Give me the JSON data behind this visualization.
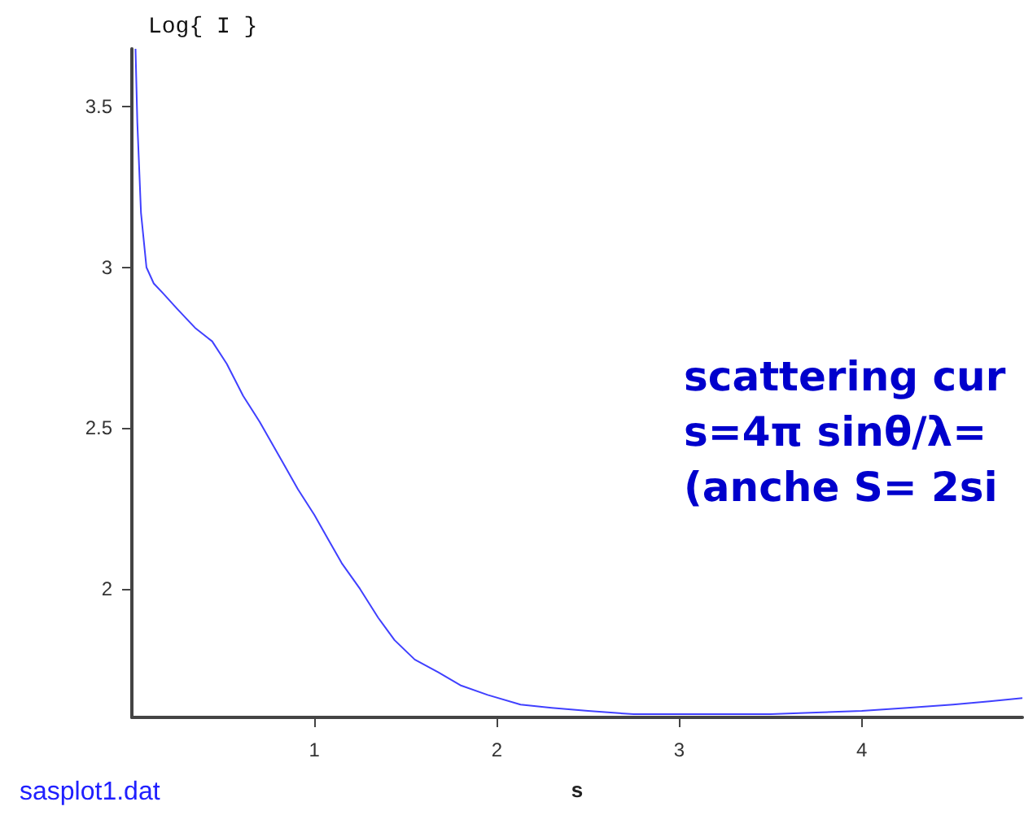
{
  "chart_data": {
    "type": "line",
    "ylabel": "Log{ I }",
    "xlabel": "s",
    "annotations": [
      "sasplot1.dat",
      "scattering cur",
      "s=4π sinθ/λ=",
      "(anche S= 2si"
    ],
    "series": [
      {
        "color": "#4040ff",
        "x": [
          0.02,
          0.03,
          0.05,
          0.08,
          0.12,
          0.17,
          0.25,
          0.35,
          0.44,
          0.52,
          0.61,
          0.7,
          0.82,
          0.91,
          1.0,
          1.08,
          1.15,
          1.25,
          1.35,
          1.44,
          1.55,
          1.68,
          1.8,
          1.95,
          2.13,
          2.3,
          2.5,
          2.75,
          3.0,
          3.25,
          3.5,
          3.75,
          4.0,
          4.25,
          4.5,
          4.7,
          4.88
        ],
        "values": [
          3.68,
          3.45,
          3.17,
          3.0,
          2.95,
          2.92,
          2.87,
          2.81,
          2.77,
          2.7,
          2.6,
          2.52,
          2.4,
          2.31,
          2.23,
          2.15,
          2.08,
          2.0,
          1.91,
          1.84,
          1.78,
          1.74,
          1.7,
          1.67,
          1.64,
          1.63,
          1.62,
          1.61,
          1.61,
          1.61,
          1.61,
          1.615,
          1.62,
          1.63,
          1.64,
          1.65,
          1.66
        ]
      }
    ],
    "xlim": [
      0,
      4.88
    ],
    "xticks": [
      1,
      2,
      3,
      4
    ],
    "ylim": [
      1.6,
      3.68
    ],
    "yticks": [
      2,
      2.5,
      3,
      3.5
    ],
    "grid": false,
    "marker": "none",
    "line_style": "solid"
  }
}
